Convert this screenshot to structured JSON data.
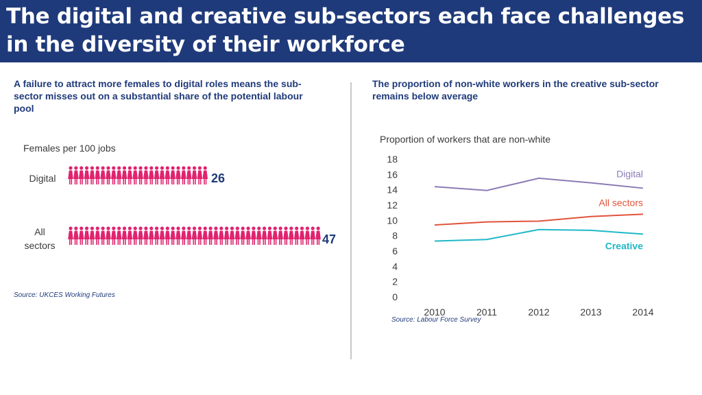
{
  "header": {
    "title": "The digital and creative sub-sectors each face challenges in the diversity of their workforce"
  },
  "left_panel": {
    "subtitle": "A failure to attract more females to digital roles means the sub-sector misses out on a substantial share of the potential labour pool",
    "metric_label": "Females per 100 jobs",
    "source": "Source: UKCES Working Futures",
    "icon": "female-figure-icon",
    "icon_color": "#e0236f"
  },
  "right_panel": {
    "subtitle": "The proportion of non-white workers in the creative sub-sector remains below average",
    "source": "Source: Labour Force Survey"
  },
  "chart_data": [
    {
      "type": "pictogram",
      "title": "Females per 100 jobs",
      "categories": [
        "Digital",
        "All sectors"
      ],
      "category_labels": [
        [
          "Digital"
        ],
        [
          "All",
          "sectors"
        ]
      ],
      "values": [
        26,
        47
      ],
      "unit_per_icon": 1
    },
    {
      "type": "line",
      "title": "Proportion of workers that are non-white",
      "x": [
        2010,
        2011,
        2012,
        2013,
        2014
      ],
      "ylim": [
        0,
        18
      ],
      "yticks": [
        0,
        2,
        4,
        6,
        8,
        10,
        12,
        14,
        16,
        18
      ],
      "series": [
        {
          "name": "Digital",
          "color": "#8c7bb5",
          "values": [
            14.4,
            13.9,
            15.5,
            14.9,
            14.2
          ]
        },
        {
          "name": "All sectors",
          "color": "#e0533a",
          "values": [
            9.4,
            9.8,
            9.9,
            10.5,
            10.8
          ]
        },
        {
          "name": "Creative",
          "color": "#1fb8c8",
          "values": [
            7.3,
            7.5,
            8.8,
            8.7,
            8.2
          ]
        }
      ]
    }
  ]
}
